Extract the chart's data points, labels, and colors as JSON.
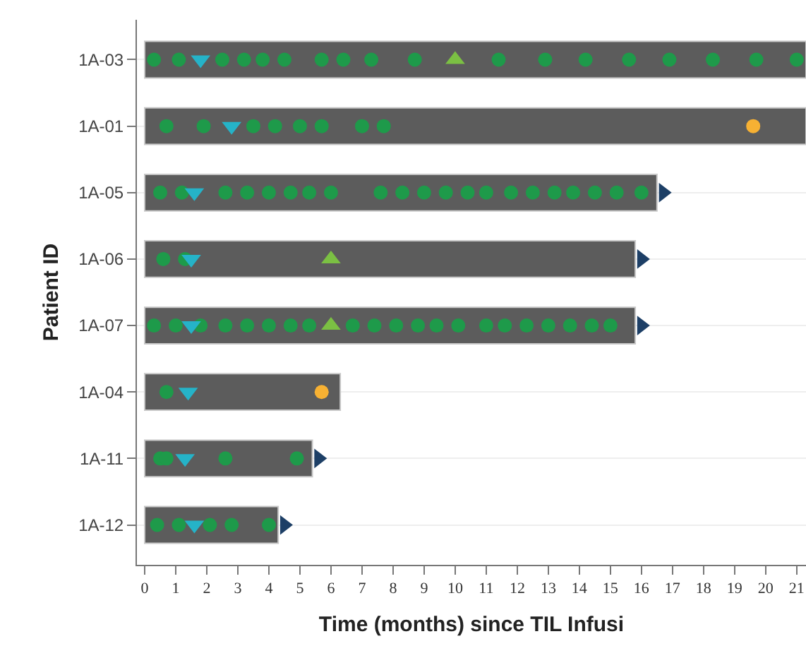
{
  "chart_data": {
    "type": "bar",
    "orientation": "horizontal",
    "xlabel": "Time (months) since TIL Infusi",
    "ylabel": "Patient ID",
    "categories": [
      "1A-03",
      "1A-01",
      "1A-05",
      "1A-06",
      "1A-07",
      "1A-04",
      "1A-11",
      "1A-12"
    ],
    "xlim": [
      -0.25,
      21.3
    ],
    "xticks": [
      0,
      1,
      2,
      3,
      4,
      5,
      6,
      7,
      8,
      9,
      10,
      11,
      12,
      13,
      14,
      15,
      16,
      17,
      18,
      19,
      20,
      21
    ],
    "grid": "y",
    "legend": false,
    "series": [
      {
        "color": "#5c5c5c",
        "values": [
          21.3,
          21.3,
          16.5,
          15.8,
          15.8,
          6.3,
          5.4,
          4.3
        ]
      },
      {
        "type": "scatter",
        "marker": "circle",
        "color": "#1e9a4a",
        "values": [
          0.3,
          0.7,
          0.5,
          0.6,
          0.3,
          0.7,
          0.5,
          0.4
        ]
      },
      {
        "type": "scatter",
        "marker": "circle",
        "color": "#1e9a4a",
        "values": [
          1.1,
          1.9,
          1.2,
          1.3,
          1.0,
          null,
          0.7,
          1.1
        ]
      },
      {
        "type": "scatter",
        "marker": "circle",
        "color": "#1e9a4a",
        "values": [
          2.5,
          3.5,
          2.6,
          null,
          1.8,
          null,
          2.6,
          2.1
        ]
      },
      {
        "type": "scatter",
        "marker": "circle",
        "color": "#1e9a4a",
        "values": [
          3.2,
          4.2,
          3.3,
          null,
          2.6,
          null,
          4.9,
          2.8
        ]
      },
      {
        "type": "scatter",
        "marker": "circle",
        "color": "#1e9a4a",
        "values": [
          3.8,
          5.0,
          4.0,
          null,
          3.3,
          null,
          null,
          4.0
        ]
      },
      {
        "type": "scatter",
        "marker": "circle",
        "color": "#1e9a4a",
        "values": [
          4.5,
          5.7,
          4.7,
          null,
          4.0,
          null,
          null,
          null
        ]
      },
      {
        "type": "scatter",
        "marker": "circle",
        "color": "#1e9a4a",
        "values": [
          5.7,
          7.0,
          5.3,
          null,
          4.7,
          null,
          null,
          null
        ]
      },
      {
        "type": "scatter",
        "marker": "circle",
        "color": "#1e9a4a",
        "values": [
          6.4,
          7.7,
          6.0,
          null,
          5.3,
          null,
          null,
          null
        ]
      },
      {
        "type": "scatter",
        "marker": "circle",
        "color": "#1e9a4a",
        "values": [
          7.3,
          null,
          7.6,
          null,
          6.7,
          null,
          null,
          null
        ]
      },
      {
        "type": "scatter",
        "marker": "circle",
        "color": "#1e9a4a",
        "values": [
          8.7,
          null,
          8.3,
          null,
          7.4,
          null,
          null,
          null
        ]
      },
      {
        "type": "scatter",
        "marker": "circle",
        "color": "#1e9a4a",
        "values": [
          11.4,
          null,
          9.0,
          null,
          8.1,
          null,
          null,
          null
        ]
      },
      {
        "type": "scatter",
        "marker": "circle",
        "color": "#1e9a4a",
        "values": [
          12.9,
          null,
          9.7,
          null,
          8.8,
          null,
          null,
          null
        ]
      },
      {
        "type": "scatter",
        "marker": "circle",
        "color": "#1e9a4a",
        "values": [
          14.2,
          null,
          10.4,
          null,
          9.4,
          null,
          null,
          null
        ]
      },
      {
        "type": "scatter",
        "marker": "circle",
        "color": "#1e9a4a",
        "values": [
          15.6,
          null,
          11.0,
          null,
          10.1,
          null,
          null,
          null
        ]
      },
      {
        "type": "scatter",
        "marker": "circle",
        "color": "#1e9a4a",
        "values": [
          16.9,
          null,
          11.8,
          null,
          11.0,
          null,
          null,
          null
        ]
      },
      {
        "type": "scatter",
        "marker": "circle",
        "color": "#1e9a4a",
        "values": [
          18.3,
          null,
          12.5,
          null,
          11.6,
          null,
          null,
          null
        ]
      },
      {
        "type": "scatter",
        "marker": "circle",
        "color": "#1e9a4a",
        "values": [
          19.7,
          null,
          13.2,
          null,
          12.3,
          null,
          null,
          null
        ]
      },
      {
        "type": "scatter",
        "marker": "circle",
        "color": "#1e9a4a",
        "values": [
          21.0,
          null,
          13.8,
          null,
          13.0,
          null,
          null,
          null
        ]
      },
      {
        "type": "scatter",
        "marker": "circle",
        "color": "#1e9a4a",
        "values": [
          null,
          null,
          14.5,
          null,
          13.7,
          null,
          null,
          null
        ]
      },
      {
        "type": "scatter",
        "marker": "circle",
        "color": "#1e9a4a",
        "values": [
          null,
          null,
          15.2,
          null,
          14.4,
          null,
          null,
          null
        ]
      },
      {
        "type": "scatter",
        "marker": "circle",
        "color": "#1e9a4a",
        "values": [
          null,
          null,
          16.0,
          null,
          15.0,
          null,
          null,
          null
        ]
      },
      {
        "type": "scatter",
        "marker": "triangle-down",
        "color": "#25b3c8",
        "values": [
          1.8,
          2.8,
          1.6,
          1.5,
          1.5,
          1.4,
          1.3,
          1.6
        ]
      },
      {
        "type": "scatter",
        "marker": "triangle",
        "color": "#7bc043",
        "values": [
          10.0,
          null,
          null,
          6.0,
          6.0,
          null,
          null,
          null
        ]
      },
      {
        "type": "scatter",
        "marker": "circle",
        "color": "#f7b133",
        "values": [
          null,
          19.6,
          null,
          null,
          null,
          5.7,
          null,
          null
        ]
      },
      {
        "type": "scatter",
        "marker": "triangle-right",
        "color": "#1d3f66",
        "values": [
          null,
          null,
          16.7,
          16.0,
          16.0,
          null,
          5.6,
          4.5
        ]
      }
    ]
  }
}
